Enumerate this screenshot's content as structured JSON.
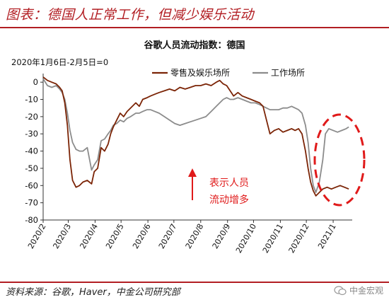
{
  "figure_title": "图表：德国人正常工作，但减少娱乐活动",
  "source": "资料来源：谷歌，Haver，中金公司研究部",
  "watermark": "中金宏观",
  "colors": {
    "accent": "#b21e23",
    "series_retail": "#7b2406",
    "series_work": "#8c8c8c",
    "dash": "#e01a1a",
    "arrow": "#e01a1a"
  },
  "chart_data": {
    "type": "line",
    "title": "谷歌人员流动指数：德国",
    "note": "2020年1月6日-2月5日=0",
    "ylim": [
      -80,
      5
    ],
    "yticks": [
      0,
      -10,
      -20,
      -30,
      -40,
      -50,
      -60,
      -70,
      -80
    ],
    "x_range": [
      "2020-02-15",
      "2021-02-06"
    ],
    "xticks": [
      {
        "label": "2020/2",
        "date": "2020-02-15"
      },
      {
        "label": "2020/3",
        "date": "2020-03-15"
      },
      {
        "label": "2020/4",
        "date": "2020-04-15"
      },
      {
        "label": "2020/5",
        "date": "2020-05-15"
      },
      {
        "label": "2020/6",
        "date": "2020-06-15"
      },
      {
        "label": "2020/7",
        "date": "2020-07-15"
      },
      {
        "label": "2020/8",
        "date": "2020-08-15"
      },
      {
        "label": "2020/9",
        "date": "2020-09-15"
      },
      {
        "label": "2020/10",
        "date": "2020-10-15"
      },
      {
        "label": "2020/11",
        "date": "2020-11-15"
      },
      {
        "label": "2020/12",
        "date": "2020-12-15"
      },
      {
        "label": "2021/1",
        "date": "2021-01-15"
      }
    ],
    "legend": "top",
    "annotation": {
      "text_line1": "表示人员",
      "text_line2": "流动增多"
    },
    "series": [
      {
        "name": "零售及娱乐场所",
        "points": [
          [
            "2020-02-15",
            3
          ],
          [
            "2020-02-20",
            1
          ],
          [
            "2020-02-25",
            0
          ],
          [
            "2020-03-01",
            -1
          ],
          [
            "2020-03-05",
            -3
          ],
          [
            "2020-03-08",
            -5
          ],
          [
            "2020-03-11",
            -12
          ],
          [
            "2020-03-14",
            -25
          ],
          [
            "2020-03-17",
            -45
          ],
          [
            "2020-03-20",
            -57
          ],
          [
            "2020-03-24",
            -61
          ],
          [
            "2020-03-28",
            -60
          ],
          [
            "2020-04-01",
            -58
          ],
          [
            "2020-04-06",
            -57
          ],
          [
            "2020-04-11",
            -59
          ],
          [
            "2020-04-14",
            -52
          ],
          [
            "2020-04-18",
            -50
          ],
          [
            "2020-04-22",
            -38
          ],
          [
            "2020-04-26",
            -40
          ],
          [
            "2020-04-30",
            -36
          ],
          [
            "2020-05-03",
            -30
          ],
          [
            "2020-05-06",
            -26
          ],
          [
            "2020-05-10",
            -22
          ],
          [
            "2020-05-14",
            -18
          ],
          [
            "2020-05-18",
            -20
          ],
          [
            "2020-05-22",
            -17
          ],
          [
            "2020-05-26",
            -15
          ],
          [
            "2020-06-01",
            -12
          ],
          [
            "2020-06-05",
            -14
          ],
          [
            "2020-06-09",
            -10
          ],
          [
            "2020-06-14",
            -9
          ],
          [
            "2020-06-18",
            -8
          ],
          [
            "2020-06-23",
            -7
          ],
          [
            "2020-06-28",
            -6
          ],
          [
            "2020-07-04",
            -5
          ],
          [
            "2020-07-10",
            -4
          ],
          [
            "2020-07-16",
            -5
          ],
          [
            "2020-07-22",
            -3
          ],
          [
            "2020-07-28",
            -4
          ],
          [
            "2020-08-03",
            -3
          ],
          [
            "2020-08-09",
            -2
          ],
          [
            "2020-08-15",
            -2
          ],
          [
            "2020-08-21",
            -1
          ],
          [
            "2020-08-27",
            -2
          ],
          [
            "2020-09-02",
            0
          ],
          [
            "2020-09-06",
            1
          ],
          [
            "2020-09-10",
            -1
          ],
          [
            "2020-09-14",
            -2
          ],
          [
            "2020-09-18",
            -5
          ],
          [
            "2020-09-22",
            -8
          ],
          [
            "2020-09-27",
            -6
          ],
          [
            "2020-10-02",
            -8
          ],
          [
            "2020-10-07",
            -9
          ],
          [
            "2020-10-12",
            -10
          ],
          [
            "2020-10-17",
            -11
          ],
          [
            "2020-10-22",
            -12
          ],
          [
            "2020-10-26",
            -14
          ],
          [
            "2020-10-30",
            -22
          ],
          [
            "2020-11-03",
            -30
          ],
          [
            "2020-11-08",
            -28
          ],
          [
            "2020-11-13",
            -27
          ],
          [
            "2020-11-18",
            -29
          ],
          [
            "2020-11-23",
            -28
          ],
          [
            "2020-11-28",
            -27
          ],
          [
            "2020-12-02",
            -28
          ],
          [
            "2020-12-06",
            -27
          ],
          [
            "2020-12-10",
            -30
          ],
          [
            "2020-12-14",
            -40
          ],
          [
            "2020-12-17",
            -50
          ],
          [
            "2020-12-20",
            -58
          ],
          [
            "2020-12-23",
            -63
          ],
          [
            "2020-12-26",
            -66
          ],
          [
            "2020-12-30",
            -64
          ],
          [
            "2021-01-03",
            -62
          ],
          [
            "2021-01-08",
            -61
          ],
          [
            "2021-01-13",
            -62
          ],
          [
            "2021-01-18",
            -61
          ],
          [
            "2021-01-23",
            -60
          ],
          [
            "2021-01-28",
            -61
          ],
          [
            "2021-02-02",
            -62
          ]
        ]
      },
      {
        "name": "工作场所",
        "points": [
          [
            "2020-02-15",
            2
          ],
          [
            "2020-02-20",
            -2
          ],
          [
            "2020-02-25",
            -3
          ],
          [
            "2020-03-01",
            -2
          ],
          [
            "2020-03-05",
            -4
          ],
          [
            "2020-03-08",
            -6
          ],
          [
            "2020-03-11",
            -10
          ],
          [
            "2020-03-14",
            -18
          ],
          [
            "2020-03-17",
            -28
          ],
          [
            "2020-03-20",
            -35
          ],
          [
            "2020-03-24",
            -39
          ],
          [
            "2020-03-28",
            -40
          ],
          [
            "2020-04-01",
            -40
          ],
          [
            "2020-04-06",
            -38
          ],
          [
            "2020-04-11",
            -51
          ],
          [
            "2020-04-14",
            -48
          ],
          [
            "2020-04-18",
            -45
          ],
          [
            "2020-04-22",
            -34
          ],
          [
            "2020-04-26",
            -33
          ],
          [
            "2020-04-30",
            -30
          ],
          [
            "2020-05-03",
            -28
          ],
          [
            "2020-05-06",
            -25
          ],
          [
            "2020-05-10",
            -24
          ],
          [
            "2020-05-14",
            -22
          ],
          [
            "2020-05-18",
            -23
          ],
          [
            "2020-05-22",
            -21
          ],
          [
            "2020-05-26",
            -20
          ],
          [
            "2020-06-01",
            -18
          ],
          [
            "2020-06-05",
            -18
          ],
          [
            "2020-06-09",
            -17
          ],
          [
            "2020-06-14",
            -16
          ],
          [
            "2020-06-18",
            -16
          ],
          [
            "2020-06-23",
            -17
          ],
          [
            "2020-06-28",
            -18
          ],
          [
            "2020-07-04",
            -20
          ],
          [
            "2020-07-10",
            -22
          ],
          [
            "2020-07-16",
            -24
          ],
          [
            "2020-07-22",
            -25
          ],
          [
            "2020-07-28",
            -24
          ],
          [
            "2020-08-03",
            -23
          ],
          [
            "2020-08-09",
            -22
          ],
          [
            "2020-08-15",
            -21
          ],
          [
            "2020-08-21",
            -20
          ],
          [
            "2020-08-27",
            -17
          ],
          [
            "2020-09-02",
            -14
          ],
          [
            "2020-09-06",
            -12
          ],
          [
            "2020-09-10",
            -10
          ],
          [
            "2020-09-14",
            -9
          ],
          [
            "2020-09-18",
            -10
          ],
          [
            "2020-09-22",
            -10
          ],
          [
            "2020-09-27",
            -9
          ],
          [
            "2020-10-02",
            -10
          ],
          [
            "2020-10-07",
            -11
          ],
          [
            "2020-10-12",
            -12
          ],
          [
            "2020-10-17",
            -12
          ],
          [
            "2020-10-22",
            -13
          ],
          [
            "2020-10-26",
            -14
          ],
          [
            "2020-10-30",
            -15
          ],
          [
            "2020-11-03",
            -16
          ],
          [
            "2020-11-08",
            -16
          ],
          [
            "2020-11-13",
            -16
          ],
          [
            "2020-11-18",
            -15
          ],
          [
            "2020-11-23",
            -15
          ],
          [
            "2020-11-28",
            -14
          ],
          [
            "2020-12-02",
            -15
          ],
          [
            "2020-12-06",
            -16
          ],
          [
            "2020-12-10",
            -18
          ],
          [
            "2020-12-14",
            -25
          ],
          [
            "2020-12-17",
            -35
          ],
          [
            "2020-12-20",
            -50
          ],
          [
            "2020-12-23",
            -60
          ],
          [
            "2020-12-26",
            -64
          ],
          [
            "2020-12-30",
            -58
          ],
          [
            "2021-01-03",
            -45
          ],
          [
            "2021-01-06",
            -30
          ],
          [
            "2021-01-10",
            -27
          ],
          [
            "2021-01-15",
            -28
          ],
          [
            "2021-01-20",
            -29
          ],
          [
            "2021-01-25",
            -28
          ],
          [
            "2021-01-30",
            -27
          ],
          [
            "2021-02-02",
            -26
          ]
        ]
      }
    ]
  }
}
